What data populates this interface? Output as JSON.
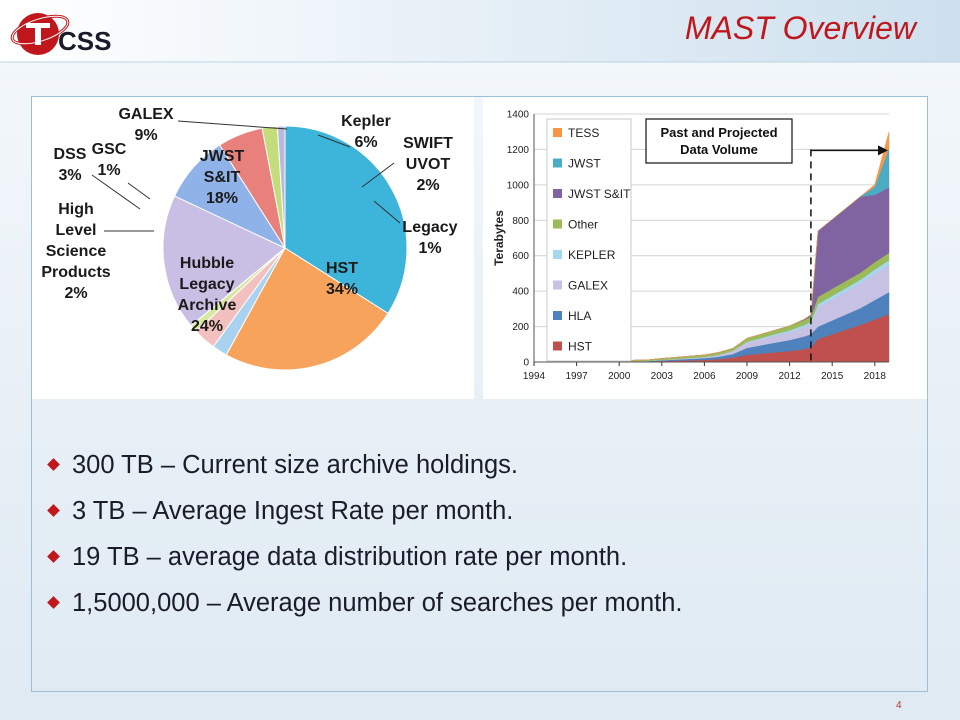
{
  "slide": {
    "title": "MAST Overview",
    "logo_text": "CSS",
    "page_number": "4",
    "bullets": [
      "300 TB – Current size archive holdings.",
      "3 TB – Average Ingest Rate per month.",
      "19 TB – average data distribution rate per month.",
      "1,5000,000 – Average number of searches per month."
    ]
  },
  "colors": {
    "title": "#c0171d",
    "panel_border": "#9bbfd8",
    "bullet_marker": "#c0171d"
  },
  "chart_data": [
    {
      "type": "pie",
      "title": "",
      "slices": [
        {
          "label": "HST",
          "value": 34,
          "text": "34%",
          "color": "#3db4da"
        },
        {
          "label": "Hubble Legacy Archive",
          "value": 24,
          "text": "24%",
          "color": "#f7a35c"
        },
        {
          "label": "High Level Science Products",
          "value": 2,
          "text": "2%",
          "color": "#a9d2f0"
        },
        {
          "label": "DSS",
          "value": 3,
          "text": "3%",
          "color": "#f2c0bf"
        },
        {
          "label": "GSC",
          "value": 1,
          "text": "1%",
          "color": "#d7e8a0"
        },
        {
          "label": "JWST S&IT",
          "value": 18,
          "text": "18%",
          "color": "#c9bfe4"
        },
        {
          "label": "GALEX",
          "value": 9,
          "text": "9%",
          "color": "#8fb2e8"
        },
        {
          "label": "Kepler",
          "value": 6,
          "text": "6%",
          "color": "#e8807b"
        },
        {
          "label": "SWIFT UVOT",
          "value": 2,
          "text": "2%",
          "color": "#c2dd7a"
        },
        {
          "label": "Legacy",
          "value": 1,
          "text": "1%",
          "color": "#b9b9dd"
        }
      ]
    },
    {
      "type": "area",
      "stacked": true,
      "annotation": "Past and Projected Data Volume",
      "ylabel": "Terabytes",
      "ylim": [
        0,
        1400
      ],
      "yticks": [
        0,
        200,
        400,
        600,
        800,
        1000,
        1200,
        1400
      ],
      "xlim": [
        1994,
        2019
      ],
      "xticks": [
        1994,
        1997,
        2000,
        2003,
        2006,
        2009,
        2012,
        2015,
        2018
      ],
      "projection_start": 2013.5,
      "legend_position": "left",
      "x": [
        1994,
        1997,
        2000,
        2002,
        2003,
        2006,
        2007,
        2008,
        2009,
        2011,
        2012,
        2013,
        2013.5,
        2014,
        2017,
        2018,
        2019
      ],
      "series": [
        {
          "name": "HST",
          "color": "#c0504d",
          "values": [
            0,
            1,
            3,
            4,
            6,
            12,
            16,
            25,
            40,
            55,
            62,
            72,
            82,
            130,
            210,
            240,
            270
          ]
        },
        {
          "name": "HLA",
          "color": "#4f81bd",
          "values": [
            0,
            0,
            1,
            2,
            4,
            10,
            14,
            20,
            40,
            55,
            62,
            72,
            75,
            70,
            95,
            110,
            125
          ]
        },
        {
          "name": "GALEX",
          "color": "#c7c1e4",
          "values": [
            0,
            0,
            0,
            0,
            2,
            6,
            10,
            18,
            30,
            40,
            45,
            52,
            55,
            110,
            140,
            150,
            155
          ]
        },
        {
          "name": "KEPLER",
          "color": "#a5d7ee",
          "values": [
            0,
            0,
            0,
            0,
            0,
            0,
            0,
            0,
            4,
            8,
            10,
            12,
            14,
            18,
            20,
            22,
            24
          ]
        },
        {
          "name": "Other",
          "color": "#9bbb59",
          "values": [
            0,
            2,
            4,
            6,
            8,
            12,
            14,
            14,
            20,
            22,
            25,
            28,
            30,
            40,
            40,
            42,
            42
          ]
        },
        {
          "name": "JWST S&IT",
          "color": "#8064a2",
          "values": [
            0,
            0,
            0,
            0,
            0,
            0,
            0,
            0,
            0,
            0,
            0,
            4,
            10,
            372,
            430,
            380,
            370
          ]
        },
        {
          "name": "JWST",
          "color": "#4bacc6",
          "values": [
            0,
            0,
            0,
            0,
            0,
            0,
            0,
            0,
            0,
            0,
            0,
            0,
            0,
            0,
            0,
            45,
            224
          ]
        },
        {
          "name": "TESS",
          "color": "#f79646",
          "values": [
            0,
            0,
            0,
            0,
            0,
            0,
            0,
            0,
            0,
            0,
            0,
            0,
            0,
            0,
            0,
            13,
            90
          ]
        }
      ],
      "legend_order": [
        "TESS",
        "JWST",
        "JWST S&IT",
        "Other",
        "KEPLER",
        "GALEX",
        "HLA",
        "HST"
      ]
    }
  ]
}
